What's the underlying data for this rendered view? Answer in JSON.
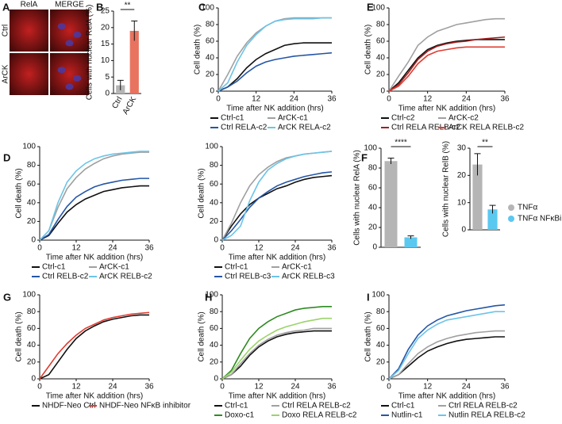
{
  "chart_data": [
    {
      "type": "image",
      "label": "A",
      "columns": [
        "RelA",
        "MERGE"
      ],
      "rows": [
        "Ctrl",
        "ArCK"
      ]
    },
    {
      "type": "bar",
      "label": "B",
      "ylabel": "Cells with nuclear RelA (%)",
      "categories": [
        "Ctrl",
        "ArCK"
      ],
      "values": [
        2.5,
        19
      ],
      "errors": [
        1.5,
        3
      ],
      "colors": [
        "#b5b5b5",
        "#e8735f"
      ],
      "significance": "**",
      "ylim": [
        0,
        25
      ],
      "yticks": [
        0,
        5,
        10,
        15,
        20,
        25
      ]
    },
    {
      "type": "line",
      "label": "C",
      "ylabel": "Cell death (%)",
      "xlabel": "Time after NK addition (hrs)",
      "xlim": [
        0,
        36
      ],
      "xticks": [
        0,
        12,
        24,
        36
      ],
      "ylim": [
        0,
        100
      ],
      "yticks": [
        0,
        20,
        40,
        60,
        80,
        100
      ],
      "x": [
        0,
        3,
        6,
        9,
        12,
        15,
        18,
        21,
        24,
        27,
        30,
        33,
        36
      ],
      "series": [
        {
          "name": "Ctrl-c1",
          "color": "#111111",
          "values": [
            0,
            5,
            15,
            28,
            38,
            45,
            50,
            55,
            57,
            58,
            58,
            58,
            58
          ]
        },
        {
          "name": "ArCK-c1",
          "color": "#a0a0a0",
          "values": [
            0,
            20,
            42,
            58,
            70,
            78,
            84,
            87,
            88,
            88,
            88,
            88,
            88
          ]
        },
        {
          "name": "Ctrl RELA-c2",
          "color": "#2456a6",
          "values": [
            0,
            5,
            12,
            22,
            30,
            35,
            38,
            40,
            42,
            43,
            44,
            45,
            46
          ]
        },
        {
          "name": "ArCK RELA-c2",
          "color": "#6cc4e8",
          "values": [
            0,
            10,
            35,
            55,
            68,
            78,
            84,
            86,
            87,
            87,
            87,
            88,
            88
          ]
        }
      ]
    },
    {
      "type": "line",
      "label": "E",
      "ylabel": "Cell death (%)",
      "xlabel": "Time after NK addition (hrs)",
      "xlim": [
        0,
        36
      ],
      "xticks": [
        0,
        12,
        24,
        36
      ],
      "ylim": [
        0,
        100
      ],
      "yticks": [
        0,
        20,
        40,
        60,
        80,
        100
      ],
      "x": [
        0,
        3,
        6,
        9,
        12,
        15,
        18,
        21,
        24,
        27,
        30,
        33,
        36
      ],
      "series": [
        {
          "name": "Ctrl-c2",
          "color": "#111111",
          "values": [
            0,
            10,
            25,
            40,
            50,
            55,
            58,
            60,
            61,
            62,
            62,
            62,
            62
          ]
        },
        {
          "name": "ArCK-c2",
          "color": "#a0a0a0",
          "values": [
            0,
            18,
            35,
            55,
            65,
            72,
            76,
            80,
            82,
            84,
            86,
            87,
            87
          ]
        },
        {
          "name": "Ctrl RELA RELB-c2",
          "color": "#a31f1f",
          "values": [
            0,
            8,
            22,
            38,
            48,
            54,
            57,
            59,
            60,
            62,
            63,
            64,
            65
          ]
        },
        {
          "name": "ArCK RELA RELB-c2",
          "color": "#e03c31",
          "values": [
            0,
            6,
            18,
            33,
            43,
            48,
            50,
            52,
            53,
            53,
            53,
            53,
            53
          ]
        }
      ]
    },
    {
      "type": "line",
      "label": "D",
      "ylabel": "Cell death (%)",
      "xlabel": "Time after NK addition (hrs)",
      "xlim": [
        0,
        36
      ],
      "xticks": [
        0,
        12,
        24,
        36
      ],
      "ylim": [
        0,
        100
      ],
      "yticks": [
        0,
        20,
        40,
        60,
        80,
        100
      ],
      "x": [
        0,
        3,
        6,
        9,
        12,
        15,
        18,
        21,
        24,
        27,
        30,
        33,
        36
      ],
      "series": [
        {
          "name": "Ctrl-c1",
          "color": "#111111",
          "values": [
            0,
            5,
            18,
            30,
            38,
            44,
            48,
            52,
            54,
            56,
            57,
            58,
            58
          ]
        },
        {
          "name": "ArCK-c1",
          "color": "#a0a0a0",
          "values": [
            0,
            10,
            35,
            55,
            67,
            76,
            82,
            87,
            90,
            92,
            93,
            94,
            94
          ]
        },
        {
          "name": "Ctrl RELB-c2",
          "color": "#2456a6",
          "values": [
            0,
            6,
            22,
            36,
            46,
            52,
            57,
            60,
            62,
            64,
            65,
            66,
            66
          ]
        },
        {
          "name": "ArCK RELB-c2",
          "color": "#6cc4e8",
          "values": [
            0,
            10,
            40,
            62,
            74,
            82,
            87,
            90,
            92,
            93,
            94,
            95,
            95
          ]
        }
      ]
    },
    {
      "type": "line",
      "ylabel": "Cell death (%)",
      "xlabel": "Time after NK addition (hrs)",
      "xlim": [
        0,
        36
      ],
      "xticks": [
        0,
        12,
        24,
        36
      ],
      "ylim": [
        0,
        100
      ],
      "yticks": [
        0,
        20,
        40,
        60,
        80,
        100
      ],
      "x": [
        0,
        3,
        6,
        9,
        12,
        15,
        18,
        21,
        24,
        27,
        30,
        33,
        36
      ],
      "series": [
        {
          "name": "Ctrl-c1",
          "color": "#111111",
          "values": [
            0,
            15,
            28,
            38,
            45,
            50,
            55,
            58,
            62,
            65,
            67,
            68,
            69
          ]
        },
        {
          "name": "ArCK-c1",
          "color": "#a0a0a0",
          "values": [
            0,
            18,
            40,
            58,
            70,
            78,
            84,
            88,
            90,
            92,
            93,
            94,
            95
          ]
        },
        {
          "name": "Ctrl RELB-c3",
          "color": "#2456a6",
          "values": [
            0,
            10,
            22,
            35,
            45,
            52,
            58,
            62,
            65,
            68,
            70,
            72,
            73
          ]
        },
        {
          "name": "ArCK RELB-c3",
          "color": "#6cc4e8",
          "values": [
            0,
            5,
            15,
            42,
            62,
            75,
            82,
            87,
            90,
            92,
            93,
            94,
            95
          ]
        }
      ]
    },
    {
      "type": "bar",
      "label": "F",
      "ylabel": "Cells with nuclear RelA (%)",
      "significance": "****",
      "ylim": [
        0,
        100
      ],
      "yticks": [
        0,
        20,
        40,
        60,
        80,
        100
      ],
      "series": [
        {
          "name": "TNFα",
          "color": "#b5b5b5",
          "values": [
            87
          ],
          "errors": [
            3
          ]
        },
        {
          "name": "TNFα NFκBi",
          "color": "#5bc8f0",
          "values": [
            10
          ],
          "errors": [
            1.5
          ]
        }
      ]
    },
    {
      "type": "bar",
      "ylabel": "Cells with nuclear RelB (%)",
      "significance": "**",
      "legend": true,
      "ylim": [
        0,
        30
      ],
      "yticks": [
        0,
        10,
        20,
        30
      ],
      "series": [
        {
          "name": "TNFα",
          "color": "#b5b5b5",
          "values": [
            24
          ],
          "errors": [
            4
          ]
        },
        {
          "name": "TNFα NFκBi",
          "color": "#5bc8f0",
          "values": [
            7.5
          ],
          "errors": [
            1.5
          ]
        }
      ]
    },
    {
      "type": "line",
      "label": "G",
      "ylabel": "Cell death (%)",
      "xlabel": "Time after NK addition (hrs)",
      "xlim": [
        0,
        36
      ],
      "xticks": [
        0,
        12,
        24,
        36
      ],
      "ylim": [
        0,
        100
      ],
      "yticks": [
        0,
        20,
        40,
        60,
        80,
        100
      ],
      "x": [
        0,
        3,
        6,
        9,
        12,
        15,
        18,
        21,
        24,
        27,
        30,
        33,
        36
      ],
      "series": [
        {
          "name": "NHDF-Neo Ctrl",
          "color": "#111111",
          "values": [
            0,
            5,
            20,
            35,
            48,
            57,
            63,
            68,
            71,
            73,
            75,
            76,
            76
          ]
        },
        {
          "name": "NHDF-Neo NFκB inhibitor",
          "color": "#e03c31",
          "values": [
            0,
            15,
            30,
            42,
            52,
            60,
            65,
            70,
            73,
            75,
            77,
            78,
            79
          ]
        }
      ]
    },
    {
      "type": "line",
      "label": "H",
      "ylabel": "Cell death (%)",
      "xlabel": "Time after NK addition (hrs)",
      "xlim": [
        0,
        36
      ],
      "xticks": [
        0,
        12,
        24,
        36
      ],
      "ylim": [
        0,
        100
      ],
      "yticks": [
        0,
        20,
        40,
        60,
        80,
        100
      ],
      "x": [
        0,
        3,
        6,
        9,
        12,
        15,
        18,
        21,
        24,
        27,
        30,
        33,
        36
      ],
      "series": [
        {
          "name": "Ctrl-c1",
          "color": "#111111",
          "values": [
            0,
            5,
            15,
            28,
            38,
            45,
            50,
            53,
            55,
            56,
            57,
            57,
            57
          ]
        },
        {
          "name": "Ctrl RELA RELB-c2",
          "color": "#a0a0a0",
          "values": [
            0,
            5,
            18,
            30,
            40,
            47,
            52,
            55,
            57,
            58,
            60,
            60,
            60
          ]
        },
        {
          "name": "Doxo-c1",
          "color": "#2e8b22",
          "values": [
            0,
            10,
            30,
            48,
            60,
            68,
            74,
            78,
            82,
            84,
            85,
            86,
            86
          ]
        },
        {
          "name": "Doxo RELA RELB-c2",
          "color": "#9bd36a",
          "values": [
            0,
            8,
            22,
            35,
            45,
            52,
            58,
            62,
            65,
            68,
            70,
            72,
            72
          ]
        }
      ]
    },
    {
      "type": "line",
      "label": "I",
      "ylabel": "Cell death (%)",
      "xlabel": "Time after NK addition (hrs)",
      "xlim": [
        0,
        36
      ],
      "xticks": [
        0,
        12,
        24,
        36
      ],
      "ylim": [
        0,
        100
      ],
      "yticks": [
        0,
        20,
        40,
        60,
        80,
        100
      ],
      "x": [
        0,
        3,
        6,
        9,
        12,
        15,
        18,
        21,
        24,
        27,
        30,
        33,
        36
      ],
      "series": [
        {
          "name": "Ctrl-c1",
          "color": "#111111",
          "values": [
            0,
            5,
            15,
            25,
            33,
            38,
            42,
            45,
            47,
            48,
            49,
            50,
            50
          ]
        },
        {
          "name": "Ctrl RELA RELB-c2",
          "color": "#a0a0a0",
          "values": [
            0,
            5,
            18,
            30,
            38,
            44,
            48,
            51,
            53,
            55,
            56,
            57,
            57
          ]
        },
        {
          "name": "Nutlin-c1",
          "color": "#2456a6",
          "values": [
            0,
            12,
            35,
            52,
            63,
            70,
            75,
            78,
            81,
            83,
            85,
            87,
            88
          ]
        },
        {
          "name": "Nutlin RELA RELB-c2",
          "color": "#6cc4e8",
          "values": [
            0,
            10,
            30,
            48,
            58,
            65,
            70,
            72,
            74,
            76,
            78,
            80,
            80
          ]
        }
      ]
    }
  ]
}
